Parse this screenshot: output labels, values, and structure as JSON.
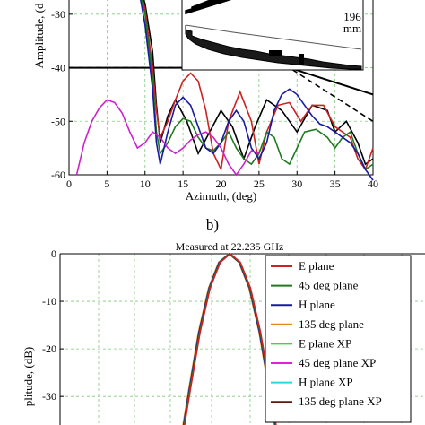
{
  "panel_b_label": "b)",
  "chart_data": [
    {
      "type": "line",
      "xlabel": "Azimuth, (deg)",
      "ylabel": "Amplitude, (d",
      "xlim": [
        0,
        40
      ],
      "ylim": [
        -60,
        -24
      ],
      "x_ticks": [
        "0",
        "5",
        "10",
        "15",
        "20",
        "25",
        "30",
        "35",
        "40"
      ],
      "x_tick_values": [
        0,
        5,
        10,
        15,
        20,
        25,
        30,
        35,
        40
      ],
      "y_ticks": [
        "-30",
        "-40",
        "-50",
        "-60"
      ],
      "y_tick_values": [
        -30,
        -40,
        -50,
        -60
      ],
      "inset_annotation": [
        "196",
        "mm"
      ],
      "series": [
        {
          "color": "#000000",
          "style": "solid",
          "x": [
            0,
            21,
            29,
            40
          ],
          "y": [
            -40,
            -40,
            -40,
            -45
          ]
        },
        {
          "color": "#000000",
          "style": "dashed",
          "x": [
            0,
            21,
            29,
            40
          ],
          "y": [
            -40,
            -40,
            -40,
            -50
          ]
        },
        {
          "color": "#000000",
          "style": "solid",
          "x": [
            9,
            10,
            11,
            11.5,
            12,
            13,
            14,
            15.5,
            17,
            18.5,
            20,
            21.5,
            23,
            24.5,
            26,
            28,
            30,
            32,
            34,
            35,
            36.5,
            38,
            39,
            40
          ],
          "y": [
            -24,
            -28,
            -37,
            -47,
            -54,
            -49,
            -46,
            -50,
            -56,
            -52,
            -48,
            -51,
            -57,
            -51,
            -46,
            -48,
            -52,
            -47,
            -48,
            -52,
            -50,
            -54,
            -58,
            -57
          ]
        },
        {
          "color": "#cc2222",
          "style": "solid",
          "x": [
            9,
            10,
            11,
            11.5,
            12,
            13,
            14,
            15,
            16,
            17,
            18,
            19,
            20,
            21,
            22.5,
            24,
            25,
            26,
            27.5,
            29,
            30.5,
            32,
            33.5,
            35,
            37,
            38,
            39,
            40
          ],
          "y": [
            -24,
            -29,
            -40,
            -48,
            -53,
            -50,
            -46,
            -42.5,
            -41,
            -42.5,
            -48,
            -56,
            -59,
            -50,
            -44.5,
            -50,
            -58,
            -52,
            -47,
            -46.5,
            -50,
            -47,
            -47,
            -51,
            -53,
            -57,
            -59,
            -55
          ]
        },
        {
          "color": "#1f7a1f",
          "style": "solid",
          "x": [
            9,
            10,
            11,
            11.5,
            12,
            13,
            14,
            15,
            16,
            17,
            18,
            19,
            20,
            21,
            22,
            23,
            24,
            25,
            26,
            27,
            28,
            29,
            30,
            31,
            32.5,
            34,
            35,
            36,
            37,
            38,
            39,
            40
          ],
          "y": [
            -24,
            -30,
            -42,
            -52,
            -56,
            -54,
            -51,
            -49.5,
            -50,
            -53,
            -55,
            -55.5,
            -54,
            -52,
            -55,
            -57,
            -58,
            -56,
            -52,
            -53,
            -57,
            -58,
            -55,
            -52,
            -51.5,
            -53,
            -55,
            -53,
            -52,
            -56,
            -59,
            -58
          ]
        },
        {
          "color": "#1a1aa0",
          "style": "solid",
          "x": [
            9,
            10,
            11,
            11.5,
            12,
            13,
            14,
            15,
            16,
            17,
            18,
            19,
            20,
            21,
            22,
            23,
            24,
            25,
            26,
            27,
            28,
            29,
            30,
            31,
            32,
            33,
            34,
            35,
            36,
            37,
            38,
            39,
            40
          ],
          "y": [
            -24,
            -32,
            -44,
            -54,
            -58,
            -52,
            -47,
            -45.5,
            -47,
            -51,
            -55,
            -56,
            -54,
            -50,
            -48,
            -50,
            -55,
            -57,
            -54,
            -48,
            -45,
            -44,
            -45,
            -47,
            -49,
            -50.5,
            -51,
            -52,
            -53,
            -54,
            -56,
            -59,
            -61
          ]
        },
        {
          "color": "#cc22cc",
          "style": "solid",
          "x": [
            1,
            2,
            3,
            4,
            5,
            6,
            7,
            8,
            9,
            10,
            11,
            12,
            13,
            14,
            15,
            16,
            17,
            18,
            19,
            20,
            21,
            22,
            23,
            24,
            25
          ],
          "y": [
            -60,
            -54,
            -50,
            -47.5,
            -46,
            -46.5,
            -48.5,
            -52,
            -55,
            -54,
            -52,
            -53,
            -55,
            -56,
            -55,
            -53.5,
            -52.5,
            -52,
            -53,
            -55,
            -58,
            -60,
            -58,
            -55.5,
            -56
          ]
        }
      ]
    },
    {
      "type": "line",
      "title": "Measured at 22.235 GHz",
      "ylabel": "plitude, (dB)",
      "ylim": [
        -36,
        0
      ],
      "y_ticks": [
        "0",
        "-10",
        "-20",
        "-30"
      ],
      "y_tick_values": [
        0,
        -10,
        -20,
        -30
      ],
      "xlim": [
        -5,
        5
      ],
      "series": [
        {
          "name": "E plane",
          "color": "#cc2222",
          "x": [
            -0.68,
            -0.6,
            -0.45,
            -0.3,
            -0.15,
            0,
            0.15,
            0.3,
            0.45,
            0.6,
            0.68
          ],
          "y": [
            -36,
            -29,
            -16.5,
            -7.2,
            -1.8,
            0,
            -1.8,
            -7.2,
            -16.5,
            -29,
            -36
          ]
        },
        {
          "name": "45 deg plane",
          "color": "#1f7a1f",
          "x": [
            -0.68,
            -0.6,
            -0.45,
            -0.3,
            -0.15,
            0,
            0.15,
            0.3,
            0.45,
            0.6,
            0.68
          ],
          "y": [
            -36,
            -29,
            -16.5,
            -7.2,
            -1.8,
            0,
            -1.8,
            -7.2,
            -16.5,
            -29,
            -36
          ]
        },
        {
          "name": "H plane",
          "color": "#1a1aa0",
          "x": [
            -0.68,
            -0.6,
            -0.45,
            -0.3,
            -0.15,
            0,
            0.15,
            0.3,
            0.45,
            0.6,
            0.68
          ],
          "y": [
            -36,
            -29,
            -16.5,
            -7.2,
            -1.8,
            0,
            -1.8,
            -7.2,
            -16.5,
            -29,
            -36
          ]
        },
        {
          "name": "135 deg plane",
          "color": "#e08a1e",
          "x": [
            -0.68,
            -0.6,
            -0.45,
            -0.3,
            -0.15,
            0,
            0.15,
            0.3,
            0.45,
            0.6,
            0.68
          ],
          "y": [
            -36,
            -29,
            -16.5,
            -7.2,
            -1.8,
            0,
            -1.8,
            -7.2,
            -16.5,
            -29,
            -36
          ]
        },
        {
          "name": "E plane XP",
          "color": "#33dd33"
        },
        {
          "name": "45 deg plane XP",
          "color": "#dd22dd"
        },
        {
          "name": "H plane XP",
          "color": "#22dddd"
        },
        {
          "name": "135 deg plane XP",
          "color": "#5a1a0a"
        }
      ]
    }
  ]
}
